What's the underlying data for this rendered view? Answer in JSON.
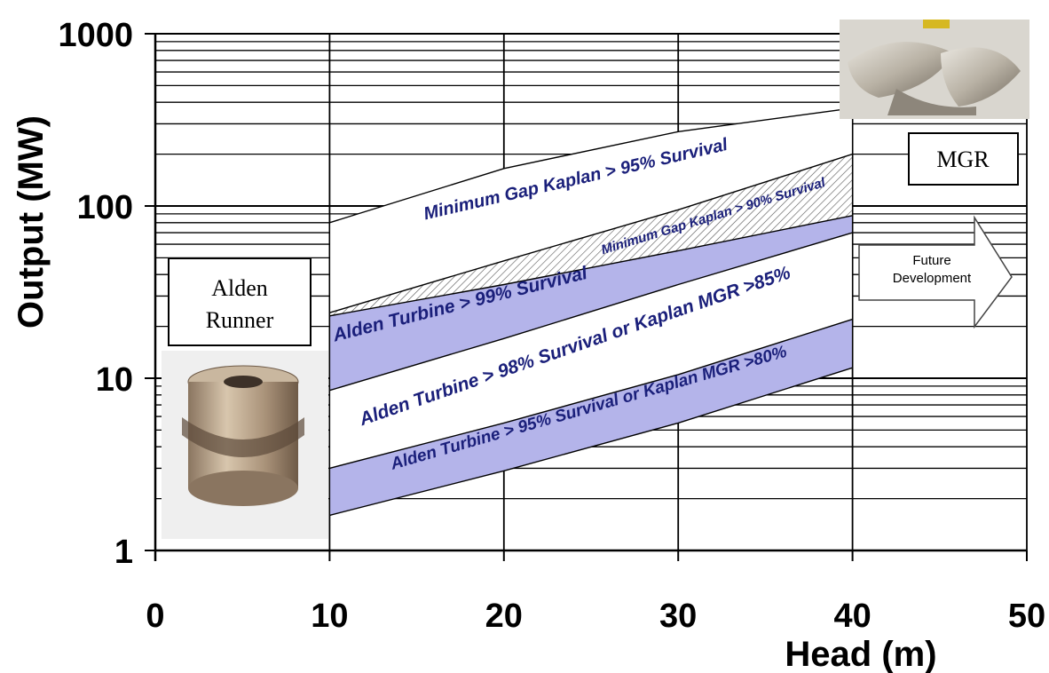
{
  "chart_data": {
    "type": "area",
    "xlabel": "Head (m)",
    "ylabel": "Output (MW)",
    "xlim": [
      0,
      50
    ],
    "ylim": [
      1,
      1000
    ],
    "yscale": "log",
    "grid": true,
    "x_ticks": [
      "0",
      "10",
      "20",
      "30",
      "40",
      "50"
    ],
    "y_ticks": [
      "1",
      "10",
      "100",
      "1000"
    ],
    "boundaries": {
      "mgk95_top": {
        "x": [
          10,
          20,
          30,
          40
        ],
        "y": [
          80,
          165,
          270,
          370
        ]
      },
      "mgk95_bottom": {
        "x": [
          10,
          20,
          30,
          40
        ],
        "y": [
          24,
          48,
          95,
          200
        ]
      },
      "alden99_top": {
        "x": [
          10,
          20,
          30,
          40
        ],
        "y": [
          23,
          35,
          55,
          88
        ]
      },
      "alden99_bottom": {
        "x": [
          10,
          20,
          30,
          40
        ],
        "y": [
          8.5,
          17,
          35,
          70
        ]
      },
      "alden95_top": {
        "x": [
          10,
          20,
          30,
          40
        ],
        "y": [
          3,
          5.5,
          10.5,
          22
        ]
      },
      "alden95_bottom": {
        "x": [
          10,
          20,
          30,
          40
        ],
        "y": [
          1.6,
          2.9,
          5.5,
          11.5
        ]
      }
    },
    "annotations": [
      "Minimum Gap Kaplan > 95% Survival",
      "Minimum Gap Kaplan > 90% Survival",
      "Alden Turbine > 99% Survival",
      "Alden Turbine > 98% Survival  or  Kaplan MGR >85%",
      "Alden Turbine > 95% Survival   or  Kaplan MGR >80%"
    ]
  },
  "labels": {
    "alden_runner": [
      "Alden",
      "Runner"
    ],
    "mgr": "MGR",
    "future": [
      "Future",
      "Development"
    ]
  },
  "colors": {
    "band_fill": "#b4b4ea",
    "band_text": "#1a1f7a",
    "hatch": "#555555"
  }
}
